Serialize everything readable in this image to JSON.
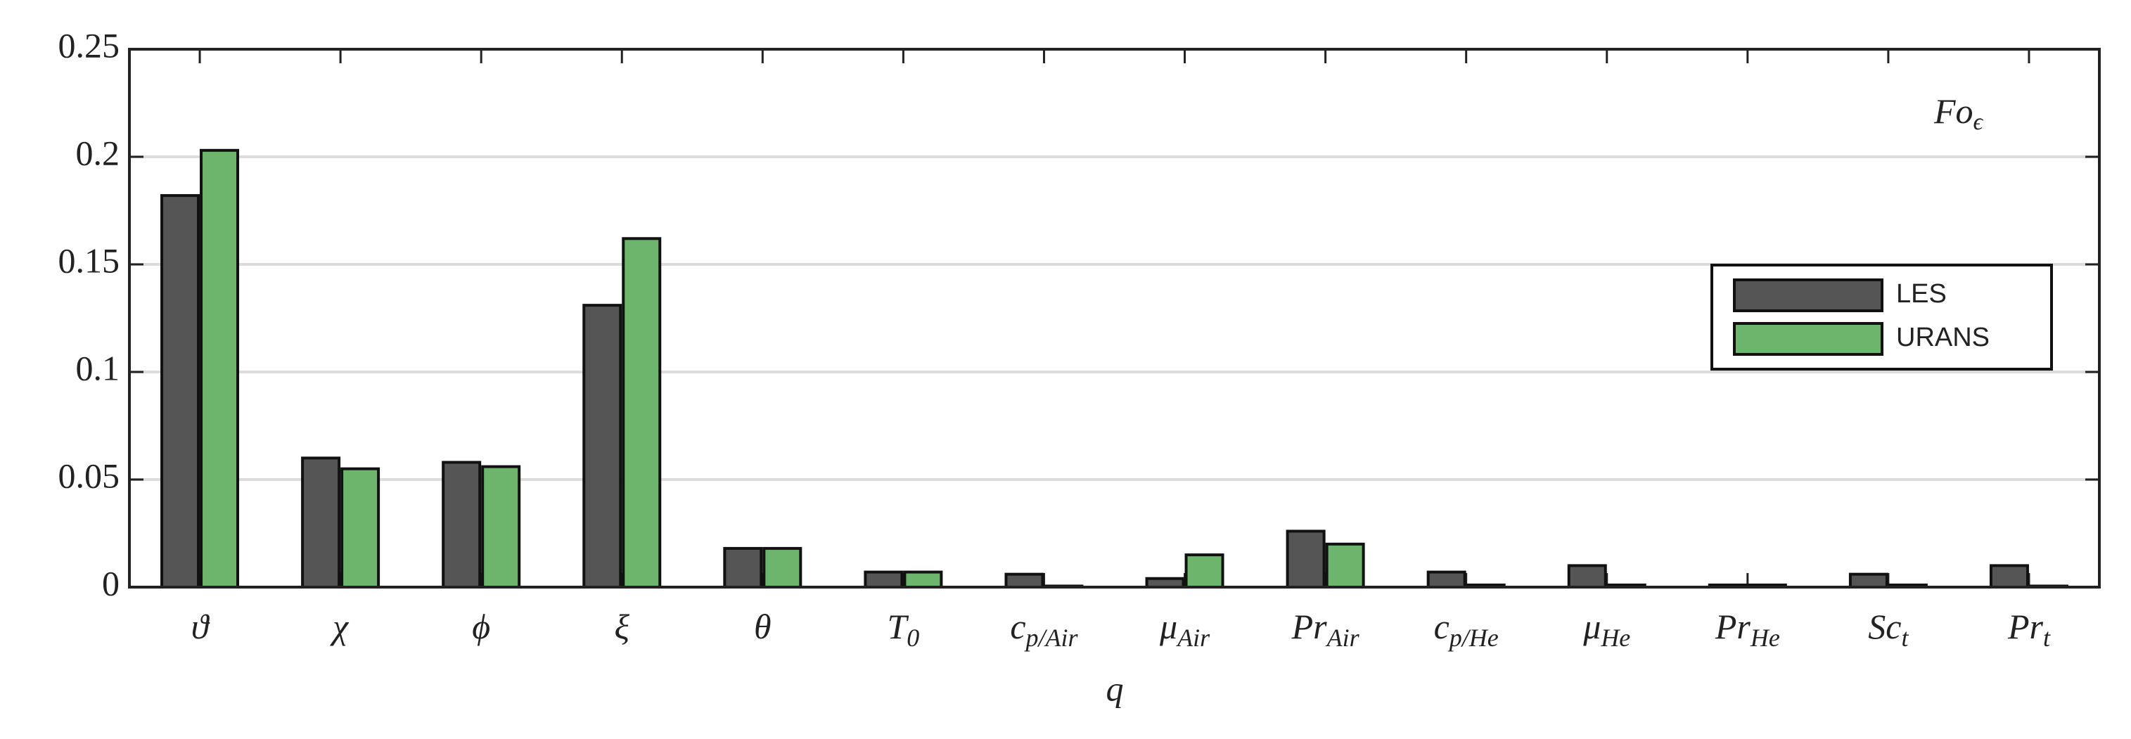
{
  "chart_data": {
    "type": "bar",
    "annotation": {
      "text": "Fo",
      "sub": "ϵ"
    },
    "x_label": "q",
    "categories": [
      {
        "text": "ϑ"
      },
      {
        "text": "χ"
      },
      {
        "text": "ϕ"
      },
      {
        "text": "ξ"
      },
      {
        "text": "θ"
      },
      {
        "text": "T",
        "sub": "0"
      },
      {
        "text": "c",
        "sub": "p/Air"
      },
      {
        "text": "μ",
        "sub": "Air"
      },
      {
        "text": "Pr",
        "sub": "Air"
      },
      {
        "text": "c",
        "sub": "p/He"
      },
      {
        "text": "μ",
        "sub": "He"
      },
      {
        "text": "Pr",
        "sub": "He"
      },
      {
        "text": "Sc",
        "sub": "t"
      },
      {
        "text": "Pr",
        "sub": "t"
      }
    ],
    "series": [
      {
        "name": "LES",
        "color": "#555555",
        "values": [
          0.182,
          0.06,
          0.058,
          0.131,
          0.018,
          0.007,
          0.006,
          0.004,
          0.026,
          0.007,
          0.01,
          0.001,
          0.006,
          0.01
        ]
      },
      {
        "name": "URANS",
        "color": "#6db56d",
        "values": [
          0.203,
          0.055,
          0.056,
          0.162,
          0.018,
          0.007,
          0.0005,
          0.015,
          0.02,
          0.001,
          0.001,
          0.001,
          0.001,
          0.0005
        ]
      }
    ],
    "ylim": [
      0,
      0.25
    ],
    "yticks": [
      0,
      0.05,
      0.1,
      0.15,
      0.2,
      0.25
    ],
    "grid": true
  }
}
